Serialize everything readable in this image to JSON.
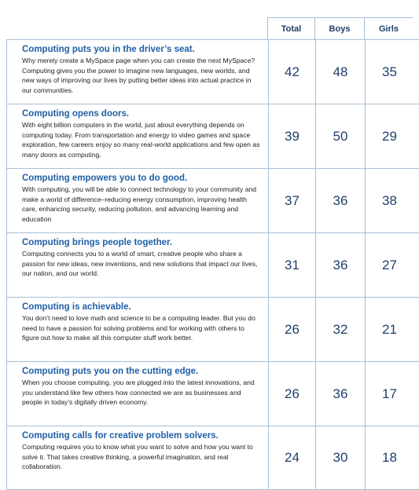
{
  "chart_data": {
    "type": "table",
    "columns": [
      "Total",
      "Boys",
      "Girls"
    ],
    "rows": [
      {
        "title": "Computing puts you in the driver’s seat.",
        "body": "Why merely create a MySpace page when you can create the next MySpace? Computing gives you the power to imagine new languages, new worlds, and new ways of improving our lives by putting better ideas into actual practice in our communities.",
        "values": [
          42,
          48,
          35
        ]
      },
      {
        "title": "Computing opens doors.",
        "body": "With eight billion computers in the world, just about everything depends on computing today. From transportation and energy to video games and space exploration, few careers enjoy so many real-world applications and few open as many doors as computing.",
        "values": [
          39,
          50,
          29
        ]
      },
      {
        "title": "Computing empowers you to do good.",
        "body": "With computing, you will be able to connect technology to your community and make a world of difference–reducing energy consumption, improving health care, enhancing security, reducing pollution, and advancing learning and education",
        "values": [
          37,
          36,
          38
        ]
      },
      {
        "title": "Computing brings people together.",
        "body": "Computing connects you to a world of smart, creative people who share a passion for new ideas, new inventions, and new solutions that impact our lives, our nation, and our world.",
        "values": [
          31,
          36,
          27
        ]
      },
      {
        "title": "Computing is achievable.",
        "body": "You don’t need to love math and science to be a computing leader. But you do need to have a passion for solving problems and for working with others to figure out how to make all this computer stuff work better.",
        "values": [
          26,
          32,
          21
        ]
      },
      {
        "title": "Computing puts you on the cutting edge.",
        "body": "When you choose computing, you are plugged into the latest innovations, and you understand like few others how connected we are as businesses and people in today’s digitally driven economy.",
        "values": [
          26,
          36,
          17
        ]
      },
      {
        "title": "Computing calls for creative problem solvers.",
        "body": "Computing requires you to know what you want to solve and how you want to solve it. That takes creative thinking, a powerful imagination, and real collaboration.",
        "values": [
          24,
          30,
          18
        ]
      }
    ]
  },
  "colors": {
    "title_text": "#1f5fa6",
    "header_text": "#1e3f6c",
    "value_text": "#1e3f6c",
    "grid_line": "#a8bfd6",
    "body_text": "#222222"
  }
}
